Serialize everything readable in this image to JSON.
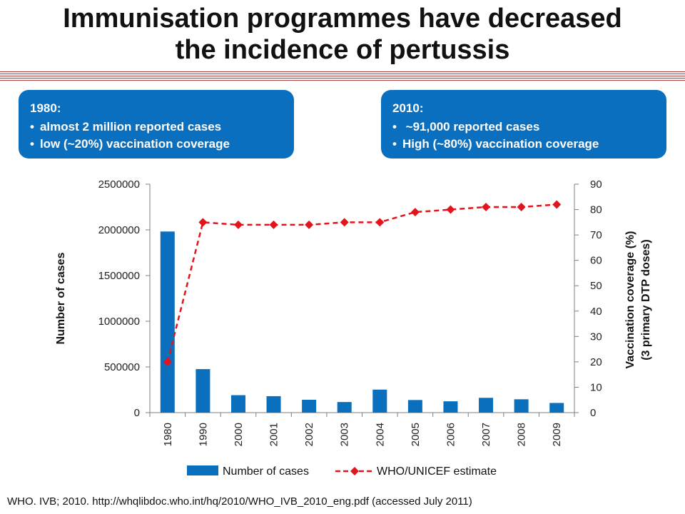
{
  "title_line1": "Immunisation programmes have decreased",
  "title_line2": "the incidence of pertussis",
  "callouts": [
    {
      "heading": "1980:",
      "items": [
        "almost 2 million reported cases",
        "low (~20%) vaccination coverage"
      ]
    },
    {
      "heading": "2010:",
      "items": [
        " ~91,000 reported cases",
        "High (~80%) vaccination coverage"
      ]
    }
  ],
  "source": "WHO. IVB; 2010. http://whqlibdoc.who.int/hq/2010/WHO_IVB_2010_eng.pdf (accessed July 2011)",
  "colors": {
    "bar": "#0a6fbd",
    "line": "#e3141b",
    "callout_bg": "#0b6fbf",
    "title_rule": "#b23a3a"
  },
  "chart_data": {
    "type": "bar",
    "categories": [
      "1980",
      "1990",
      "2000",
      "2001",
      "2002",
      "2003",
      "2004",
      "2005",
      "2006",
      "2007",
      "2008",
      "2009"
    ],
    "series": [
      {
        "name": "Number of cases",
        "type": "bar",
        "axis": "left",
        "values": [
          1982000,
          476000,
          191000,
          180000,
          141000,
          116000,
          252000,
          138000,
          124000,
          162000,
          146000,
          106000
        ]
      },
      {
        "name": "WHO/UNICEF estimate",
        "type": "line",
        "axis": "right",
        "style": "dashed",
        "marker": "diamond",
        "values": [
          20,
          75,
          74,
          74,
          74,
          75,
          75,
          79,
          80,
          81,
          81,
          82
        ]
      }
    ],
    "ylabel": "Number of cases",
    "ylim": [
      0,
      2500000
    ],
    "yticks": [
      "0",
      "500000",
      "1000000",
      "1500000",
      "2000000",
      "2500000"
    ],
    "y2label_line1": "Vaccination coverage (%)",
    "y2label_line2": "(3 primary DTP doses)",
    "y2lim": [
      0,
      90
    ],
    "y2ticks": [
      "0",
      "10",
      "20",
      "30",
      "40",
      "50",
      "60",
      "70",
      "80",
      "90"
    ],
    "grid": false,
    "legend": "bottom"
  }
}
